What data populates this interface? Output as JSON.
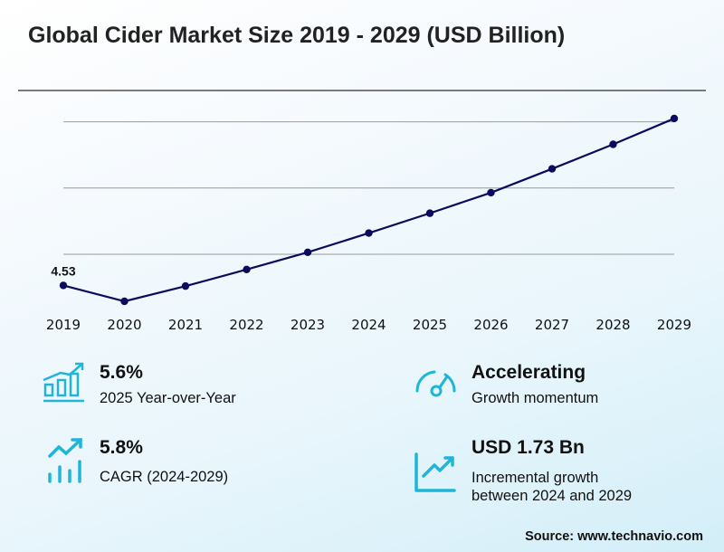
{
  "header": {
    "title": "Global Cider Market Size 2019 - 2029 (USD Billion)"
  },
  "chart_data": {
    "type": "line",
    "title": "Global Cider Market Size 2019 - 2029 (USD Billion)",
    "xlabel": "",
    "ylabel": "",
    "x": [
      "2019",
      "2020",
      "2021",
      "2022",
      "2023",
      "2024",
      "2025",
      "2026",
      "2027",
      "2028",
      "2029"
    ],
    "series": [
      {
        "name": "Market Size (USD Billion)",
        "values": [
          4.53,
          4.29,
          4.52,
          4.77,
          5.03,
          5.32,
          5.62,
          5.93,
          6.29,
          6.66,
          7.05
        ]
      }
    ],
    "data_labels": [
      {
        "x": "2019",
        "text": "4.53"
      }
    ],
    "gridlines": [
      5,
      6,
      7
    ],
    "ylim": [
      4.0,
      7.2
    ],
    "grid": true,
    "legend": "none",
    "colors": {
      "line": "#0b0b5e",
      "grid": "#9a9a9a"
    }
  },
  "stats": [
    {
      "icon": "bar-chart-growth-icon",
      "value": "5.6%",
      "label": "2025 Year-over-Year"
    },
    {
      "icon": "speedometer-icon",
      "value": "Accelerating",
      "label": "Growth momentum"
    },
    {
      "icon": "trend-up-bars-icon",
      "value": "5.8%",
      "label": "CAGR (2024-2029)"
    },
    {
      "icon": "line-chart-growth-icon",
      "value": "USD 1.73 Bn",
      "label_lines": [
        "Incremental growth",
        "between 2024 and 2029"
      ]
    }
  ],
  "accent_color": "#1fb5d6",
  "footer": {
    "source": "Source: www.technavio.com"
  }
}
